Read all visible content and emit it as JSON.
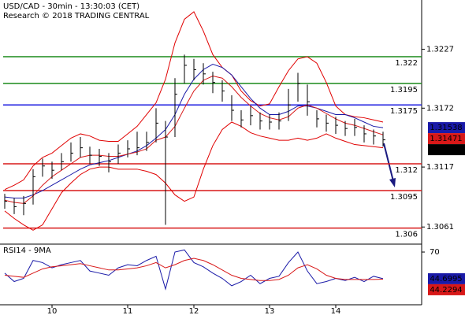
{
  "chart_data": {
    "type": "ohlc",
    "title": "USD/CAD - 30min - 13:30:03 (CET)",
    "subtitle": "Research © 2018 TRADING CENTRAL",
    "categories": [
      null,
      null,
      null,
      null,
      null,
      "10",
      null,
      null,
      null,
      null,
      null,
      null,
      null,
      "11",
      null,
      null,
      null,
      null,
      null,
      null,
      "12",
      null,
      null,
      null,
      null,
      null,
      null,
      null,
      "13",
      null,
      null,
      null,
      null,
      null,
      null,
      "14",
      null,
      null,
      null,
      null,
      null
    ],
    "color": "#000000",
    "high": [
      1.3092,
      1.3088,
      1.309,
      1.3115,
      1.3125,
      1.3122,
      1.313,
      1.314,
      1.3145,
      1.3136,
      1.3134,
      1.313,
      1.3138,
      1.3142,
      1.315,
      1.315,
      1.3172,
      1.316,
      1.32,
      1.3222,
      1.3218,
      1.3214,
      1.3206,
      1.3198,
      1.3184,
      1.317,
      1.3174,
      1.3168,
      1.3166,
      1.3168,
      1.319,
      1.3205,
      1.3194,
      1.317,
      1.3166,
      1.3164,
      1.316,
      1.3162,
      1.3156,
      1.3152,
      1.315
    ],
    "low": [
      1.3078,
      1.3073,
      1.3072,
      1.3082,
      1.3108,
      1.3106,
      1.3114,
      1.3122,
      1.3126,
      1.312,
      1.3118,
      1.3112,
      1.312,
      1.3126,
      1.3128,
      1.3132,
      1.314,
      1.3063,
      1.3145,
      1.3195,
      1.3198,
      1.3194,
      1.3186,
      1.3178,
      1.316,
      1.3154,
      1.3156,
      1.3152,
      1.3152,
      1.3152,
      1.316,
      1.3178,
      1.3165,
      1.3154,
      1.315,
      1.3148,
      1.3146,
      1.3146,
      1.314,
      1.3138,
      1.3136
    ],
    "close": [
      1.3085,
      1.308,
      1.3083,
      1.3108,
      1.3118,
      1.3114,
      1.3122,
      1.313,
      1.3135,
      1.3128,
      1.3127,
      1.3122,
      1.313,
      1.3134,
      1.3135,
      1.314,
      1.3158,
      1.3145,
      1.3185,
      1.3212,
      1.3208,
      1.3204,
      1.3196,
      1.3188,
      1.317,
      1.3161,
      1.3165,
      1.316,
      1.3159,
      1.316,
      1.3175,
      1.3195,
      1.3178,
      1.3162,
      1.3158,
      1.3156,
      1.3153,
      1.3154,
      1.3148,
      1.3146,
      1.31424
    ],
    "close_box_color": "#000000",
    "bands": {
      "color": "#e00000",
      "upper": [
        1.3096,
        1.31,
        1.3105,
        1.3118,
        1.3126,
        1.313,
        1.3137,
        1.3144,
        1.3148,
        1.3146,
        1.3142,
        1.3141,
        1.3141,
        1.3148,
        1.3155,
        1.3166,
        1.3177,
        1.3199,
        1.3233,
        1.3255,
        1.3262,
        1.3244,
        1.3222,
        1.321,
        1.3203,
        1.3188,
        1.3179,
        1.3174,
        1.3176,
        1.3192,
        1.3207,
        1.3218,
        1.322,
        1.3214,
        1.3196,
        1.3174,
        1.3166,
        1.3164,
        1.3163,
        1.3161,
        1.3159
      ],
      "lower": [
        1.3076,
        1.3069,
        1.3063,
        1.3058,
        1.3063,
        1.3078,
        1.3093,
        1.3102,
        1.311,
        1.3115,
        1.3117,
        1.3117,
        1.3115,
        1.3115,
        1.3115,
        1.3113,
        1.311,
        1.3102,
        1.3091,
        1.3085,
        1.3089,
        1.3115,
        1.3137,
        1.3152,
        1.3159,
        1.3155,
        1.3149,
        1.3146,
        1.3144,
        1.3142,
        1.3142,
        1.3144,
        1.3142,
        1.3144,
        1.3148,
        1.3144,
        1.3141,
        1.3138,
        1.3137,
        1.3136,
        1.3135
      ]
    },
    "lines": [
      {
        "color": "#1a1aa8",
        "values": [
          1.3089,
          1.3088,
          1.3088,
          1.3091,
          1.3095,
          1.31,
          1.3105,
          1.311,
          1.3115,
          1.3119,
          1.3121,
          1.3123,
          1.3126,
          1.3129,
          1.3132,
          1.3137,
          1.3144,
          1.3152,
          1.3166,
          1.3185,
          1.3199,
          1.3208,
          1.3213,
          1.321,
          1.3203,
          1.3192,
          1.3181,
          1.3172,
          1.3166,
          1.3166,
          1.3169,
          1.3174,
          1.3174,
          1.3172,
          1.3169,
          1.3166,
          1.3166,
          1.3163,
          1.3159,
          1.3155,
          1.31538
        ]
      },
      {
        "color": "#d81818",
        "values": [
          1.3086,
          1.3084,
          1.3083,
          1.309,
          1.31,
          1.3108,
          1.3114,
          1.312,
          1.3126,
          1.3128,
          1.3128,
          1.3127,
          1.3127,
          1.3129,
          1.3131,
          1.3134,
          1.3142,
          1.3145,
          1.3155,
          1.3172,
          1.3188,
          1.3198,
          1.3202,
          1.32,
          1.3192,
          1.3182,
          1.3174,
          1.3167,
          1.3163,
          1.3161,
          1.3164,
          1.3172,
          1.3175,
          1.3172,
          1.3167,
          1.3162,
          1.3158,
          1.3156,
          1.3153,
          1.315,
          1.31471
        ]
      }
    ],
    "levels": [
      {
        "value": 1.322,
        "color": "#1a8a1a"
      },
      {
        "value": 1.3195,
        "color": "#1a8a1a"
      },
      {
        "value": 1.3175,
        "color": "#1a1ae0"
      },
      {
        "value": 1.312,
        "color": "#d81818"
      },
      {
        "value": 1.3095,
        "color": "#d81818"
      },
      {
        "value": 1.306,
        "color": "#d81818"
      }
    ],
    "ylim": [
      1.3045,
      1.3273
    ],
    "yticks": [
      1.3227,
      1.3172,
      1.3117,
      1.3061
    ],
    "indicator": {
      "title": "RSI14 - 9MA",
      "ylim": [
        20,
        76
      ],
      "yticks": [
        70
      ],
      "series": [
        {
          "color": "#1a1aa8",
          "values": [
            50,
            42,
            45,
            62,
            60,
            55,
            58,
            60,
            62,
            52,
            50,
            48,
            55,
            58,
            57,
            62,
            66,
            35,
            70,
            72,
            60,
            56,
            50,
            45,
            38,
            42,
            48,
            40,
            45,
            47,
            60,
            70,
            52,
            40,
            42,
            45,
            43,
            46,
            42,
            47,
            44.6995
          ]
        },
        {
          "color": "#d81818",
          "values": [
            48,
            47,
            46,
            50,
            54,
            56,
            57,
            58,
            59,
            57,
            55,
            53,
            53,
            54,
            55,
            57,
            60,
            55,
            58,
            62,
            64,
            62,
            58,
            53,
            48,
            45,
            44,
            43,
            43,
            44,
            48,
            55,
            58,
            54,
            48,
            45,
            44,
            44,
            44,
            44,
            44.2294
          ]
        }
      ]
    }
  }
}
